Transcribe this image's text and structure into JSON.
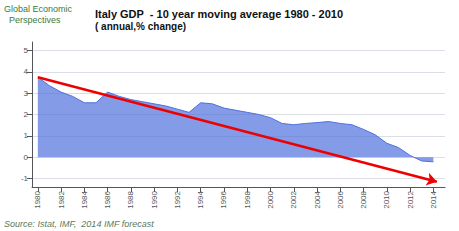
{
  "chart_data": {
    "type": "area",
    "title": "Italy GDP  - 10 year moving average 1980 - 2010",
    "subtitle": "( annual,% change)",
    "annotations": [
      {
        "text": "Global Economic\n  Perspectives"
      },
      {
        "text": "Source: Istat, IMF,  2014 IMF forecast"
      }
    ],
    "x": [
      1980,
      1981,
      1982,
      1983,
      1984,
      1985,
      1986,
      1987,
      1988,
      1989,
      1990,
      1991,
      1992,
      1993,
      1994,
      1995,
      1996,
      1997,
      1998,
      1999,
      2000,
      2001,
      2002,
      2003,
      2004,
      2005,
      2006,
      2007,
      2008,
      2009,
      2010,
      2011,
      2012,
      2013,
      2014
    ],
    "values": [
      3.75,
      3.35,
      3.05,
      2.85,
      2.55,
      2.55,
      3.05,
      2.85,
      2.7,
      2.6,
      2.5,
      2.4,
      2.25,
      2.1,
      2.55,
      2.5,
      2.3,
      2.2,
      2.1,
      2.0,
      1.85,
      1.58,
      1.52,
      1.58,
      1.62,
      1.67,
      1.58,
      1.52,
      1.3,
      1.05,
      0.65,
      0.45,
      0.08,
      -0.18,
      -0.22
    ],
    "trend_arrow": {
      "x": [
        1980,
        2014.3
      ],
      "y": [
        3.75,
        -1.15
      ],
      "color": "#ee0000"
    },
    "xlim": [
      1979.5,
      2015.0
    ],
    "xticks": [
      1980,
      1982,
      1984,
      1986,
      1988,
      1990,
      1992,
      1994,
      1996,
      1998,
      2000,
      2002,
      2004,
      2006,
      2008,
      2010,
      2012,
      2014
    ],
    "ylim": [
      -1.4,
      5.4
    ],
    "yticks": [
      -1,
      0,
      1,
      2,
      3,
      4,
      5
    ],
    "grid": true
  }
}
